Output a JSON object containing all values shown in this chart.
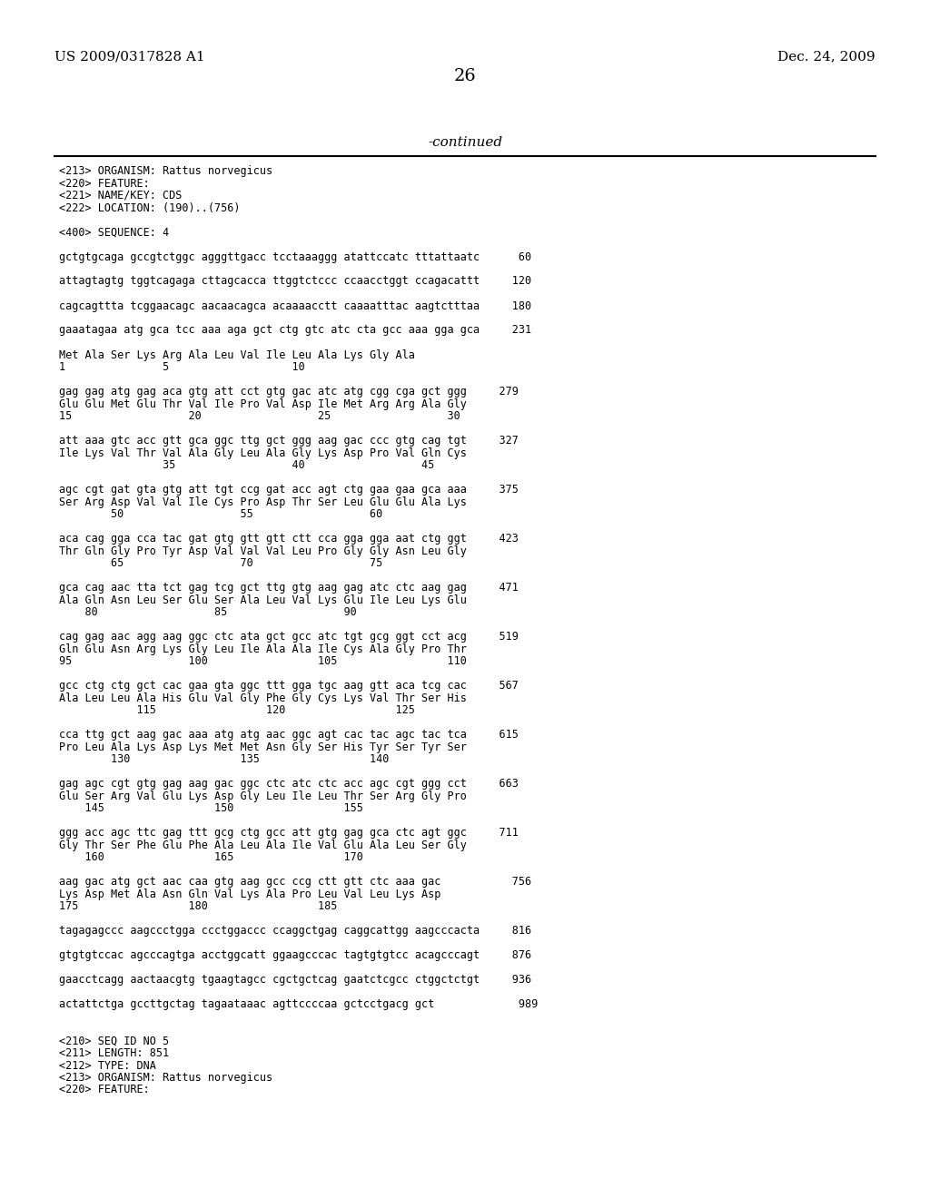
{
  "header_left": "US 2009/0317828 A1",
  "header_right": "Dec. 24, 2009",
  "page_number": "26",
  "continued_text": "-continued",
  "background_color": "#ffffff",
  "text_color": "#000000",
  "header_fontsize": 11,
  "page_num_fontsize": 14,
  "continued_fontsize": 11,
  "body_fontsize": 8.5,
  "mono_lines": [
    "<213> ORGANISM: Rattus norvegicus",
    "<220> FEATURE:",
    "<221> NAME/KEY: CDS",
    "<222> LOCATION: (190)..(756)",
    "",
    "<400> SEQUENCE: 4",
    "",
    "gctgtgcaga gccgtctggc agggttgacc tcctaaaggg atattccatc tttattaatc      60",
    "",
    "attagtagtg tggtcagaga cttagcacca ttggtctccc ccaacctggt ccagacattt     120",
    "",
    "cagcagttta tcggaacagc aacaacagca acaaaacctt caaaatttac aagtctttaa     180",
    "",
    "gaaatagaa atg gca tcc aaa aga gct ctg gtc atc cta gcc aaa gga gca     231",
    "",
    "Met Ala Ser Lys Arg Ala Leu Val Ile Leu Ala Lys Gly Ala",
    "1               5                   10",
    "",
    "gag gag atg gag aca gtg att cct gtg gac atc atg cgg cga gct ggg     279",
    "Glu Glu Met Glu Thr Val Ile Pro Val Asp Ile Met Arg Arg Ala Gly",
    "15                  20                  25                  30",
    "",
    "att aaa gtc acc gtt gca ggc ttg gct ggg aag gac ccc gtg cag tgt     327",
    "Ile Lys Val Thr Val Ala Gly Leu Ala Gly Lys Asp Pro Val Gln Cys",
    "                35                  40                  45",
    "",
    "agc cgt gat gta gtg att tgt ccg gat acc agt ctg gaa gaa gca aaa     375",
    "Ser Arg Asp Val Val Ile Cys Pro Asp Thr Ser Leu Glu Glu Ala Lys",
    "        50                  55                  60",
    "",
    "aca cag gga cca tac gat gtg gtt gtt ctt cca gga gga aat ctg ggt     423",
    "Thr Gln Gly Pro Tyr Asp Val Val Val Leu Pro Gly Gly Asn Leu Gly",
    "        65                  70                  75",
    "",
    "gca cag aac tta tct gag tcg gct ttg gtg aag gag atc ctc aag gag     471",
    "Ala Gln Asn Leu Ser Glu Ser Ala Leu Val Lys Glu Ile Leu Lys Glu",
    "    80                  85                  90",
    "",
    "cag gag aac agg aag ggc ctc ata gct gcc atc tgt gcg ggt cct acg     519",
    "Gln Glu Asn Arg Lys Gly Leu Ile Ala Ala Ile Cys Ala Gly Pro Thr",
    "95                  100                 105                 110",
    "",
    "gcc ctg ctg gct cac gaa gta ggc ttt gga tgc aag gtt aca tcg cac     567",
    "Ala Leu Leu Ala His Glu Val Gly Phe Gly Cys Lys Val Thr Ser His",
    "            115                 120                 125",
    "",
    "cca ttg gct aag gac aaa atg atg aac ggc agt cac tac agc tac tca     615",
    "Pro Leu Ala Lys Asp Lys Met Met Asn Gly Ser His Tyr Ser Tyr Ser",
    "        130                 135                 140",
    "",
    "gag agc cgt gtg gag aag gac ggc ctc atc ctc acc agc cgt ggg cct     663",
    "Glu Ser Arg Val Glu Lys Asp Gly Leu Ile Leu Thr Ser Arg Gly Pro",
    "    145                 150                 155",
    "",
    "ggg acc agc ttc gag ttt gcg ctg gcc att gtg gag gca ctc agt ggc     711",
    "Gly Thr Ser Phe Glu Phe Ala Leu Ala Ile Val Glu Ala Leu Ser Gly",
    "    160                 165                 170",
    "",
    "aag gac atg gct aac caa gtg aag gcc ccg ctt gtt ctc aaa gac           756",
    "Lys Asp Met Ala Asn Gln Val Lys Ala Pro Leu Val Leu Lys Asp",
    "175                 180                 185",
    "",
    "tagagagccc aagccctgga ccctggaccc ccaggctgag caggcattgg aagcccacta     816",
    "",
    "gtgtgtccac agcccagtga acctggcatt ggaagcccac tagtgtgtcc acagcccagt     876",
    "",
    "gaacctcagg aactaacgtg tgaagtagcc cgctgctcag gaatctcgcc ctggctctgt     936",
    "",
    "actattctga gccttgctag tagaataaac agttccccaa gctcctgacg gct             989",
    "",
    "",
    "<210> SEQ ID NO 5",
    "<211> LENGTH: 851",
    "<212> TYPE: DNA",
    "<213> ORGANISM: Rattus norvegicus",
    "<220> FEATURE:"
  ]
}
